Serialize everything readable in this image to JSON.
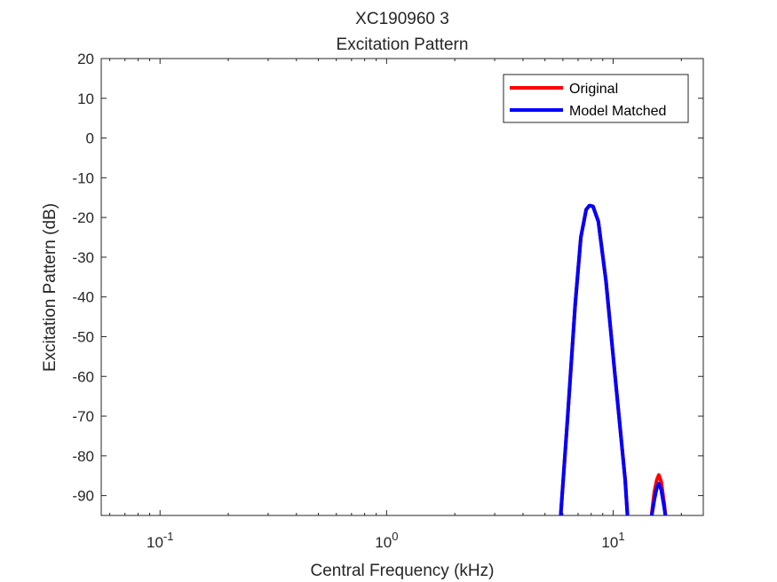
{
  "chart_data": {
    "type": "line",
    "title": "XC190960 3",
    "subtitle": "Excitation Pattern",
    "xlabel": "Central Frequency (kHz)",
    "ylabel": "Excitation Pattern (dB)",
    "xscale": "log",
    "xlim": [
      0.055,
      25
    ],
    "ylim": [
      -95,
      20
    ],
    "yticks": [
      20,
      10,
      0,
      -10,
      -20,
      -30,
      -40,
      -50,
      -60,
      -70,
      -80,
      -90
    ],
    "ytick_labels": [
      "20",
      "10",
      "0",
      "-10",
      "-20",
      "-30",
      "-40",
      "-50",
      "-60",
      "-70",
      "-80",
      "-90"
    ],
    "xticks": [
      0.1,
      1,
      10
    ],
    "xtick_labels": [
      {
        "base": "10",
        "exp": "-1"
      },
      {
        "base": "10",
        "exp": "0"
      },
      {
        "base": "10",
        "exp": "1"
      }
    ],
    "grid": false,
    "legend_position": "top-right",
    "series": [
      {
        "name": "Original",
        "color": "#ff0000",
        "segments": [
          [
            [
              5.85,
              -96
            ],
            [
              6.3,
              -70
            ],
            [
              6.8,
              -42
            ],
            [
              7.2,
              -25
            ],
            [
              7.6,
              -18
            ],
            [
              7.85,
              -17
            ],
            [
              8.15,
              -17.2
            ],
            [
              8.6,
              -21
            ],
            [
              9.3,
              -36
            ],
            [
              10.2,
              -60
            ],
            [
              11.3,
              -86
            ],
            [
              11.6,
              -96
            ]
          ],
          [
            [
              14.7,
              -96
            ],
            [
              15.2,
              -89
            ],
            [
              15.6,
              -86
            ],
            [
              15.9,
              -84.8
            ],
            [
              16.3,
              -86.5
            ],
            [
              16.8,
              -92
            ],
            [
              17.1,
              -96
            ]
          ]
        ]
      },
      {
        "name": "Model Matched",
        "color": "#0000ff",
        "segments": [
          [
            [
              5.85,
              -96
            ],
            [
              6.3,
              -70
            ],
            [
              6.8,
              -42
            ],
            [
              7.2,
              -25
            ],
            [
              7.6,
              -18
            ],
            [
              7.85,
              -17
            ],
            [
              8.15,
              -17.2
            ],
            [
              8.6,
              -21
            ],
            [
              9.3,
              -36
            ],
            [
              10.2,
              -60
            ],
            [
              11.3,
              -86
            ],
            [
              11.6,
              -96
            ]
          ],
          [
            [
              14.7,
              -96
            ],
            [
              15.2,
              -91
            ],
            [
              15.6,
              -88
            ],
            [
              15.9,
              -87
            ],
            [
              16.3,
              -88.5
            ],
            [
              16.8,
              -93
            ],
            [
              17.1,
              -96
            ]
          ]
        ]
      }
    ]
  }
}
